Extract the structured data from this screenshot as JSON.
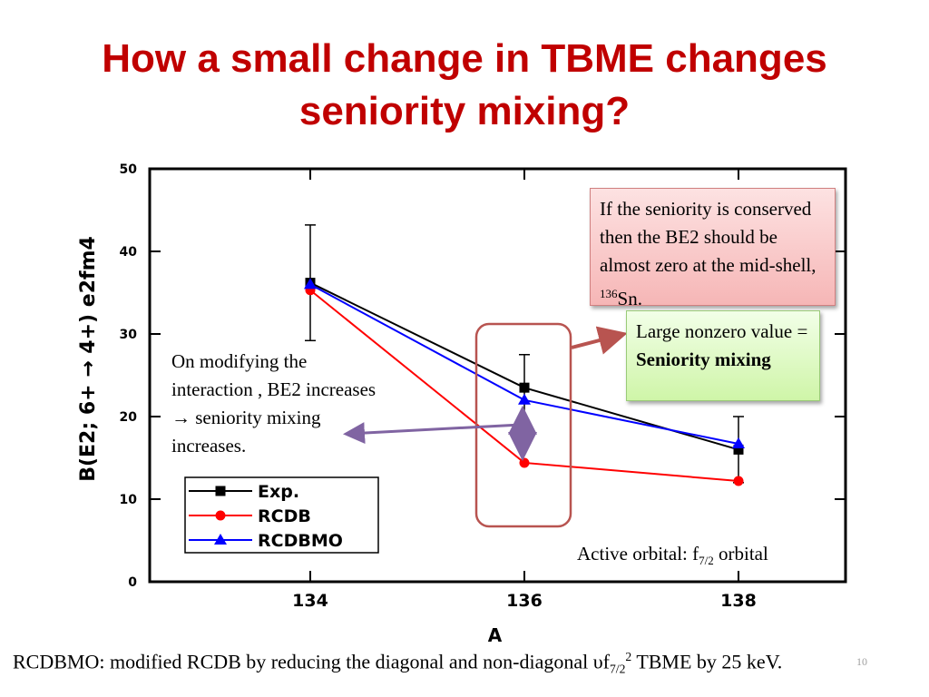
{
  "slide": {
    "title_line1": "How a small change in TBME changes",
    "title_line2": "seniority mixing?",
    "box_red": {
      "text_before": "If the seniority is conserved then the BE2 should be almost zero at the mid-shell, ",
      "sup": "136",
      "text_after": "Sn."
    },
    "box_green": {
      "text_plain": "Large nonzero value =  ",
      "text_bold": "Seniority mixing"
    },
    "note": "On modifying the interaction , BE2 increases → seniority mixing increases.",
    "active_orbital": {
      "prefix": "Active orbital: f",
      "sub": "7/2",
      "suffix": " orbital"
    },
    "footer": {
      "prefix": "RCDBMO: modified RCDB by reducing the diagonal and non-diagonal υf",
      "sub": "7/2",
      "sup": "2",
      "suffix": " TBME by 25 keV."
    },
    "page_number": "10"
  },
  "chart_data": {
    "type": "line",
    "x": [
      134,
      136,
      138
    ],
    "xlabel": "A",
    "ylabel": "B(E2; 6+ → 4+) e2fm4",
    "xlim": [
      132.5,
      139.0
    ],
    "ylim": [
      0,
      50
    ],
    "xticks": [
      "134",
      "136",
      "138"
    ],
    "yticks": [
      "0",
      "10",
      "20",
      "30",
      "40",
      "50"
    ],
    "series": [
      {
        "name": "Exp.",
        "values": [
          36.2,
          23.5,
          16.0
        ],
        "err_lo": [
          7.0,
          4.0,
          4.0
        ],
        "err_hi": [
          7.0,
          4.0,
          4.0
        ],
        "color": "#000000",
        "marker": "square"
      },
      {
        "name": "RCDB",
        "values": [
          35.3,
          14.4,
          12.2
        ],
        "color": "#ff0000",
        "marker": "circle"
      },
      {
        "name": "RCDBMO",
        "values": [
          36.0,
          22.0,
          16.7
        ],
        "color": "#0000ff",
        "marker": "triangle"
      }
    ],
    "legend_position": "bottom-left",
    "highlight_color": "#b85450",
    "arrow_color": "#8064a2"
  }
}
